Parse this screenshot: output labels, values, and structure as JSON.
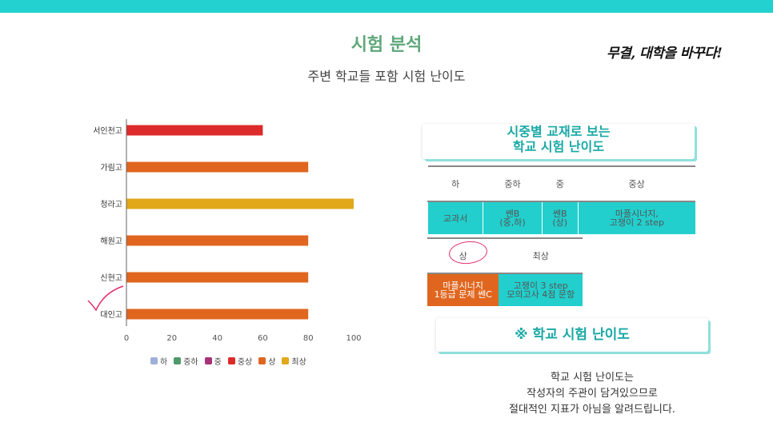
{
  "title": "시험 분석",
  "subtitle": "주변 학교들 포함 시험 난이도",
  "slogan": "무결, 대학을 바꾸다!",
  "chart_data": {
    "type": "bar",
    "orientation": "horizontal",
    "categories": [
      "서인천고",
      "가림고",
      "청라고",
      "해원고",
      "신현고",
      "대인고"
    ],
    "values": [
      60,
      80,
      100,
      80,
      80,
      80
    ],
    "bar_levels": [
      "중상",
      "상",
      "최상",
      "상",
      "상",
      "상"
    ],
    "xlim": [
      0,
      100
    ],
    "xticks": [
      0,
      20,
      40,
      60,
      80,
      100
    ],
    "legend": [
      {
        "name": "하",
        "color": "#9fb0d8"
      },
      {
        "name": "중하",
        "color": "#4f9a6a"
      },
      {
        "name": "중",
        "color": "#a8327a"
      },
      {
        "name": "중상",
        "color": "#dd2a2a"
      },
      {
        "name": "상",
        "color": "#e0661f"
      },
      {
        "name": "최상",
        "color": "#e2a81a"
      }
    ],
    "legend_position": "bottom"
  },
  "card1": {
    "line1": "시중별 교재로 보는",
    "line2": "학교 시험 난이도"
  },
  "table1": {
    "headers": [
      "하",
      "중하",
      "중",
      "중상"
    ],
    "cells": [
      {
        "line1": "교과서",
        "line2": ""
      },
      {
        "line1": "쎈B",
        "line2": "(중,하)"
      },
      {
        "line1": "쎈B",
        "line2": "(상)"
      },
      {
        "line1": "마플시너지,",
        "line2": "고쟁이 2 step"
      }
    ]
  },
  "table2": {
    "headers": [
      "상",
      "최상"
    ],
    "cells": [
      {
        "line1": "마플시너지",
        "line2": "1등급 문제 쎈C"
      },
      {
        "line1": "고쟁이 3 step",
        "line2": "모의고사 4점 문항"
      }
    ]
  },
  "card2": {
    "text": "※ 학교 시험 난이도"
  },
  "note": {
    "line1": "학교 시험 난이도는",
    "line2": "작성자의 주관이 담겨있으므로",
    "line3": "절대적인 지표가 아님을 알려드립니다."
  }
}
